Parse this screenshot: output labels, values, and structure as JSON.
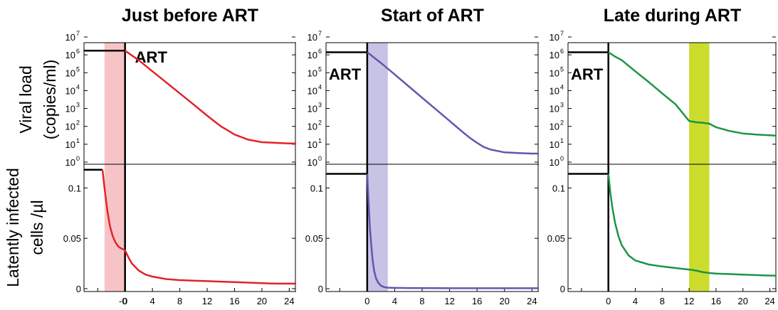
{
  "figure": {
    "ylabels": {
      "top_line1": "Viral load",
      "top_line2": "(copies/ml)",
      "bottom_line1": "Latently infected",
      "bottom_line2": "cells /µl"
    }
  },
  "chart_data": [
    {
      "type": "line",
      "title": "Just before ART",
      "panel": "viral load",
      "x": [
        -6,
        -0.05,
        0,
        2,
        4,
        6,
        8,
        10,
        12,
        13,
        14,
        15,
        16,
        18,
        20,
        22,
        24,
        25
      ],
      "y": [
        1700000,
        1700000,
        1700000,
        500000,
        120000,
        29000,
        7000,
        1700,
        400,
        200,
        100,
        60,
        35,
        18,
        13,
        12,
        11,
        11
      ],
      "yscale": "log",
      "ylim": [
        1,
        10000000
      ],
      "yticks": [
        "10^0",
        "10^1",
        "10^2",
        "10^3",
        "10^4",
        "10^5",
        "10^6",
        "10^7"
      ],
      "series_color": "#e1232a",
      "baseline_color": "#000000",
      "shaded_interval": [
        -3,
        0
      ],
      "shade_color": "#f6c4c6",
      "annotation": "ART"
    },
    {
      "type": "line",
      "title": "Just before ART",
      "panel": "latently infected cells",
      "x": [
        -6,
        -3.3,
        -3.0,
        -2.6,
        -2.2,
        -1.8,
        -1.4,
        -1.0,
        -0.6,
        -0.2,
        0,
        0.5,
        1,
        2,
        3,
        4,
        6,
        8,
        10,
        12,
        14,
        16,
        18,
        20,
        22,
        24,
        25
      ],
      "y": [
        0.118,
        0.118,
        0.1,
        0.078,
        0.062,
        0.052,
        0.046,
        0.042,
        0.04,
        0.039,
        0.038,
        0.031,
        0.025,
        0.018,
        0.014,
        0.012,
        0.0095,
        0.0085,
        0.008,
        0.0075,
        0.007,
        0.0065,
        0.006,
        0.0055,
        0.005,
        0.005,
        0.005
      ],
      "ylim": [
        0,
        0.12
      ],
      "yticks": [
        0,
        0.05,
        0.1
      ],
      "ytick_labels": [
        "0",
        "0.05",
        "0.1"
      ],
      "xlim": [
        -6,
        25
      ],
      "xticks": [
        0,
        4,
        8,
        12,
        16,
        20,
        24
      ],
      "xtick_labels": [
        "0",
        "4",
        "8",
        "12",
        "16",
        "20",
        "24"
      ],
      "extra_xtick_labels": [
        {
          "x": -0.3,
          "label": "-0"
        }
      ],
      "series_color": "#e1232a",
      "shaded_interval": [
        -3,
        0
      ],
      "shade_color": "#f6c4c6"
    },
    {
      "type": "line",
      "title": "Start of ART",
      "panel": "viral load",
      "x": [
        -6,
        0,
        0.5,
        1,
        2,
        4,
        6,
        8,
        10,
        12,
        14,
        15,
        16,
        17,
        18,
        20,
        22,
        24,
        25
      ],
      "y": [
        1400000,
        1400000,
        1000000,
        700000,
        350000,
        80000,
        18000,
        4000,
        900,
        200,
        45,
        22,
        12,
        7,
        5,
        3.5,
        3.2,
        3,
        3
      ],
      "yscale": "log",
      "ylim": [
        1,
        10000000
      ],
      "yticks": [
        "10^0",
        "10^1",
        "10^2",
        "10^3",
        "10^4",
        "10^5",
        "10^6",
        "10^7"
      ],
      "series_color": "#6a52ad",
      "baseline_color": "#000000",
      "shaded_interval": [
        0,
        3
      ],
      "shade_color": "#c6c3e5",
      "annotation": "ART"
    },
    {
      "type": "line",
      "title": "Start of ART",
      "panel": "latently infected cells",
      "x": [
        -6,
        -0.05,
        0,
        0.2,
        0.4,
        0.6,
        0.8,
        1.0,
        1.3,
        1.6,
        2.0,
        2.5,
        3,
        4,
        6,
        10,
        16,
        20,
        24,
        25
      ],
      "y": [
        0.114,
        0.114,
        0.114,
        0.085,
        0.06,
        0.042,
        0.028,
        0.018,
        0.01,
        0.006,
        0.003,
        0.0015,
        0.001,
        0.0008,
        0.0006,
        0.0005,
        0.0004,
        0.0004,
        0.0004,
        0.0004
      ],
      "ylim": [
        0,
        0.12
      ],
      "yticks": [
        0,
        0.05,
        0.1
      ],
      "ytick_labels": [
        "0",
        "0.05",
        "0.1"
      ],
      "xlim": [
        -6,
        25
      ],
      "xticks": [
        0,
        4,
        8,
        12,
        16,
        20,
        24
      ],
      "xtick_labels": [
        "0",
        "4",
        "8",
        "12",
        "16",
        "20",
        "24"
      ],
      "series_color": "#6a52ad",
      "shaded_interval": [
        0,
        3
      ],
      "shade_color": "#c6c3e5"
    },
    {
      "type": "line",
      "title": "Late during ART",
      "panel": "viral load",
      "x": [
        -6,
        0,
        1,
        2,
        4,
        6,
        8,
        10,
        12,
        13,
        14,
        15,
        16,
        18,
        20,
        22,
        24,
        25
      ],
      "y": [
        1400000,
        1400000,
        800000,
        500000,
        120000,
        30000,
        7000,
        1700,
        200,
        170,
        160,
        140,
        90,
        55,
        40,
        35,
        32,
        30
      ],
      "yscale": "log",
      "ylim": [
        1,
        10000000
      ],
      "yticks": [
        "10^0",
        "10^1",
        "10^2",
        "10^3",
        "10^4",
        "10^5",
        "10^6",
        "10^7"
      ],
      "series_color": "#1c9447",
      "baseline_color": "#000000",
      "shaded_interval": [
        12,
        15
      ],
      "shade_color": "#cbdc2c",
      "annotation": "ART"
    },
    {
      "type": "line",
      "title": "Late during ART",
      "panel": "latently infected cells",
      "x": [
        -6,
        -0.05,
        0,
        0.3,
        0.6,
        1,
        1.5,
        2,
        3,
        4,
        6,
        8,
        10,
        12,
        13,
        14,
        15,
        16,
        18,
        20,
        22,
        24,
        25
      ],
      "y": [
        0.114,
        0.114,
        0.114,
        0.095,
        0.08,
        0.065,
        0.052,
        0.043,
        0.033,
        0.028,
        0.024,
        0.022,
        0.0205,
        0.019,
        0.018,
        0.0165,
        0.0155,
        0.015,
        0.0145,
        0.014,
        0.0135,
        0.013,
        0.013
      ],
      "ylim": [
        0,
        0.12
      ],
      "yticks": [
        0,
        0.05,
        0.1
      ],
      "ytick_labels": [
        "0",
        "0.05",
        "0.1"
      ],
      "xlim": [
        -6,
        25
      ],
      "xticks": [
        0,
        4,
        8,
        12,
        16,
        20,
        24
      ],
      "xtick_labels": [
        "0",
        "4",
        "8",
        "12",
        "16",
        "20",
        "24"
      ],
      "series_color": "#1c9447",
      "shaded_interval": [
        12,
        15
      ],
      "shade_color": "#cbdc2c"
    }
  ]
}
